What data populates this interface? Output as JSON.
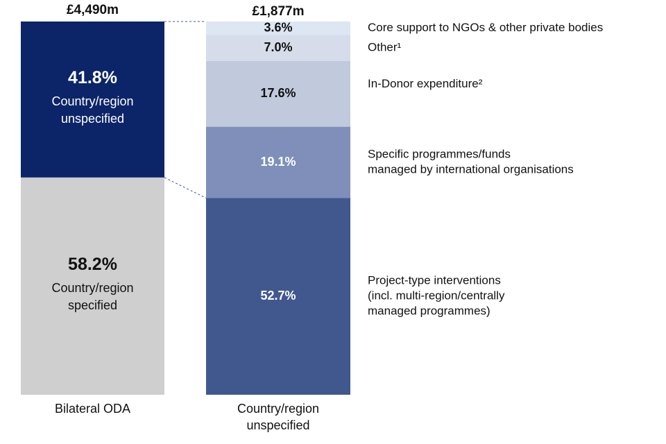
{
  "chart_data": {
    "type": "stacked-bar",
    "bars": [
      {
        "id": "bilateral",
        "total_label": "£4,490m",
        "category_label": [
          "Bilateral ODA"
        ],
        "segments": [
          {
            "name": "Country/region unspecified",
            "value": 41.8,
            "label": "41.8%",
            "text_lines": [
              "Country/region",
              "unspecified"
            ],
            "color": "#0c2468",
            "text_color": "#ffffff"
          },
          {
            "name": "Country/region specified",
            "value": 58.2,
            "label": "58.2%",
            "text_lines": [
              "Country/region",
              "specified"
            ],
            "color": "#cfcfcf",
            "text_color": "#111111"
          }
        ]
      },
      {
        "id": "unspecified",
        "total_label": "£1,877m",
        "category_label": [
          "Country/region",
          "unspecified"
        ],
        "segments": [
          {
            "name": "Core support to NGOs & other private bodies",
            "value": 3.6,
            "label": "3.6%",
            "legend_lines": [
              "Core support to NGOs & other private bodies"
            ],
            "color": "#dde6f3",
            "text_color": "#111111"
          },
          {
            "name": "Other¹",
            "value": 7.0,
            "label": "7.0%",
            "legend_lines": [
              "Other¹"
            ],
            "color": "#d6dce9",
            "text_color": "#111111"
          },
          {
            "name": "In-Donor expenditure²",
            "value": 17.6,
            "label": "17.6%",
            "legend_lines": [
              "In-Donor expenditure²"
            ],
            "color": "#c1c9dd",
            "text_color": "#111111"
          },
          {
            "name": "Specific programmes/funds managed by international organisations",
            "value": 19.1,
            "label": "19.1%",
            "legend_lines": [
              "Specific programmes/funds",
              "managed by international organisations"
            ],
            "color": "#7f8fb9",
            "text_color": "#ffffff"
          },
          {
            "name": "Project-type interventions (incl. multi-region/centrally managed programmes)",
            "value": 52.7,
            "label": "52.7%",
            "legend_lines": [
              "Project-type interventions",
              "(incl. multi-region/centrally",
              "managed programmes)"
            ],
            "color": "#41588f",
            "text_color": "#ffffff"
          }
        ]
      }
    ]
  }
}
